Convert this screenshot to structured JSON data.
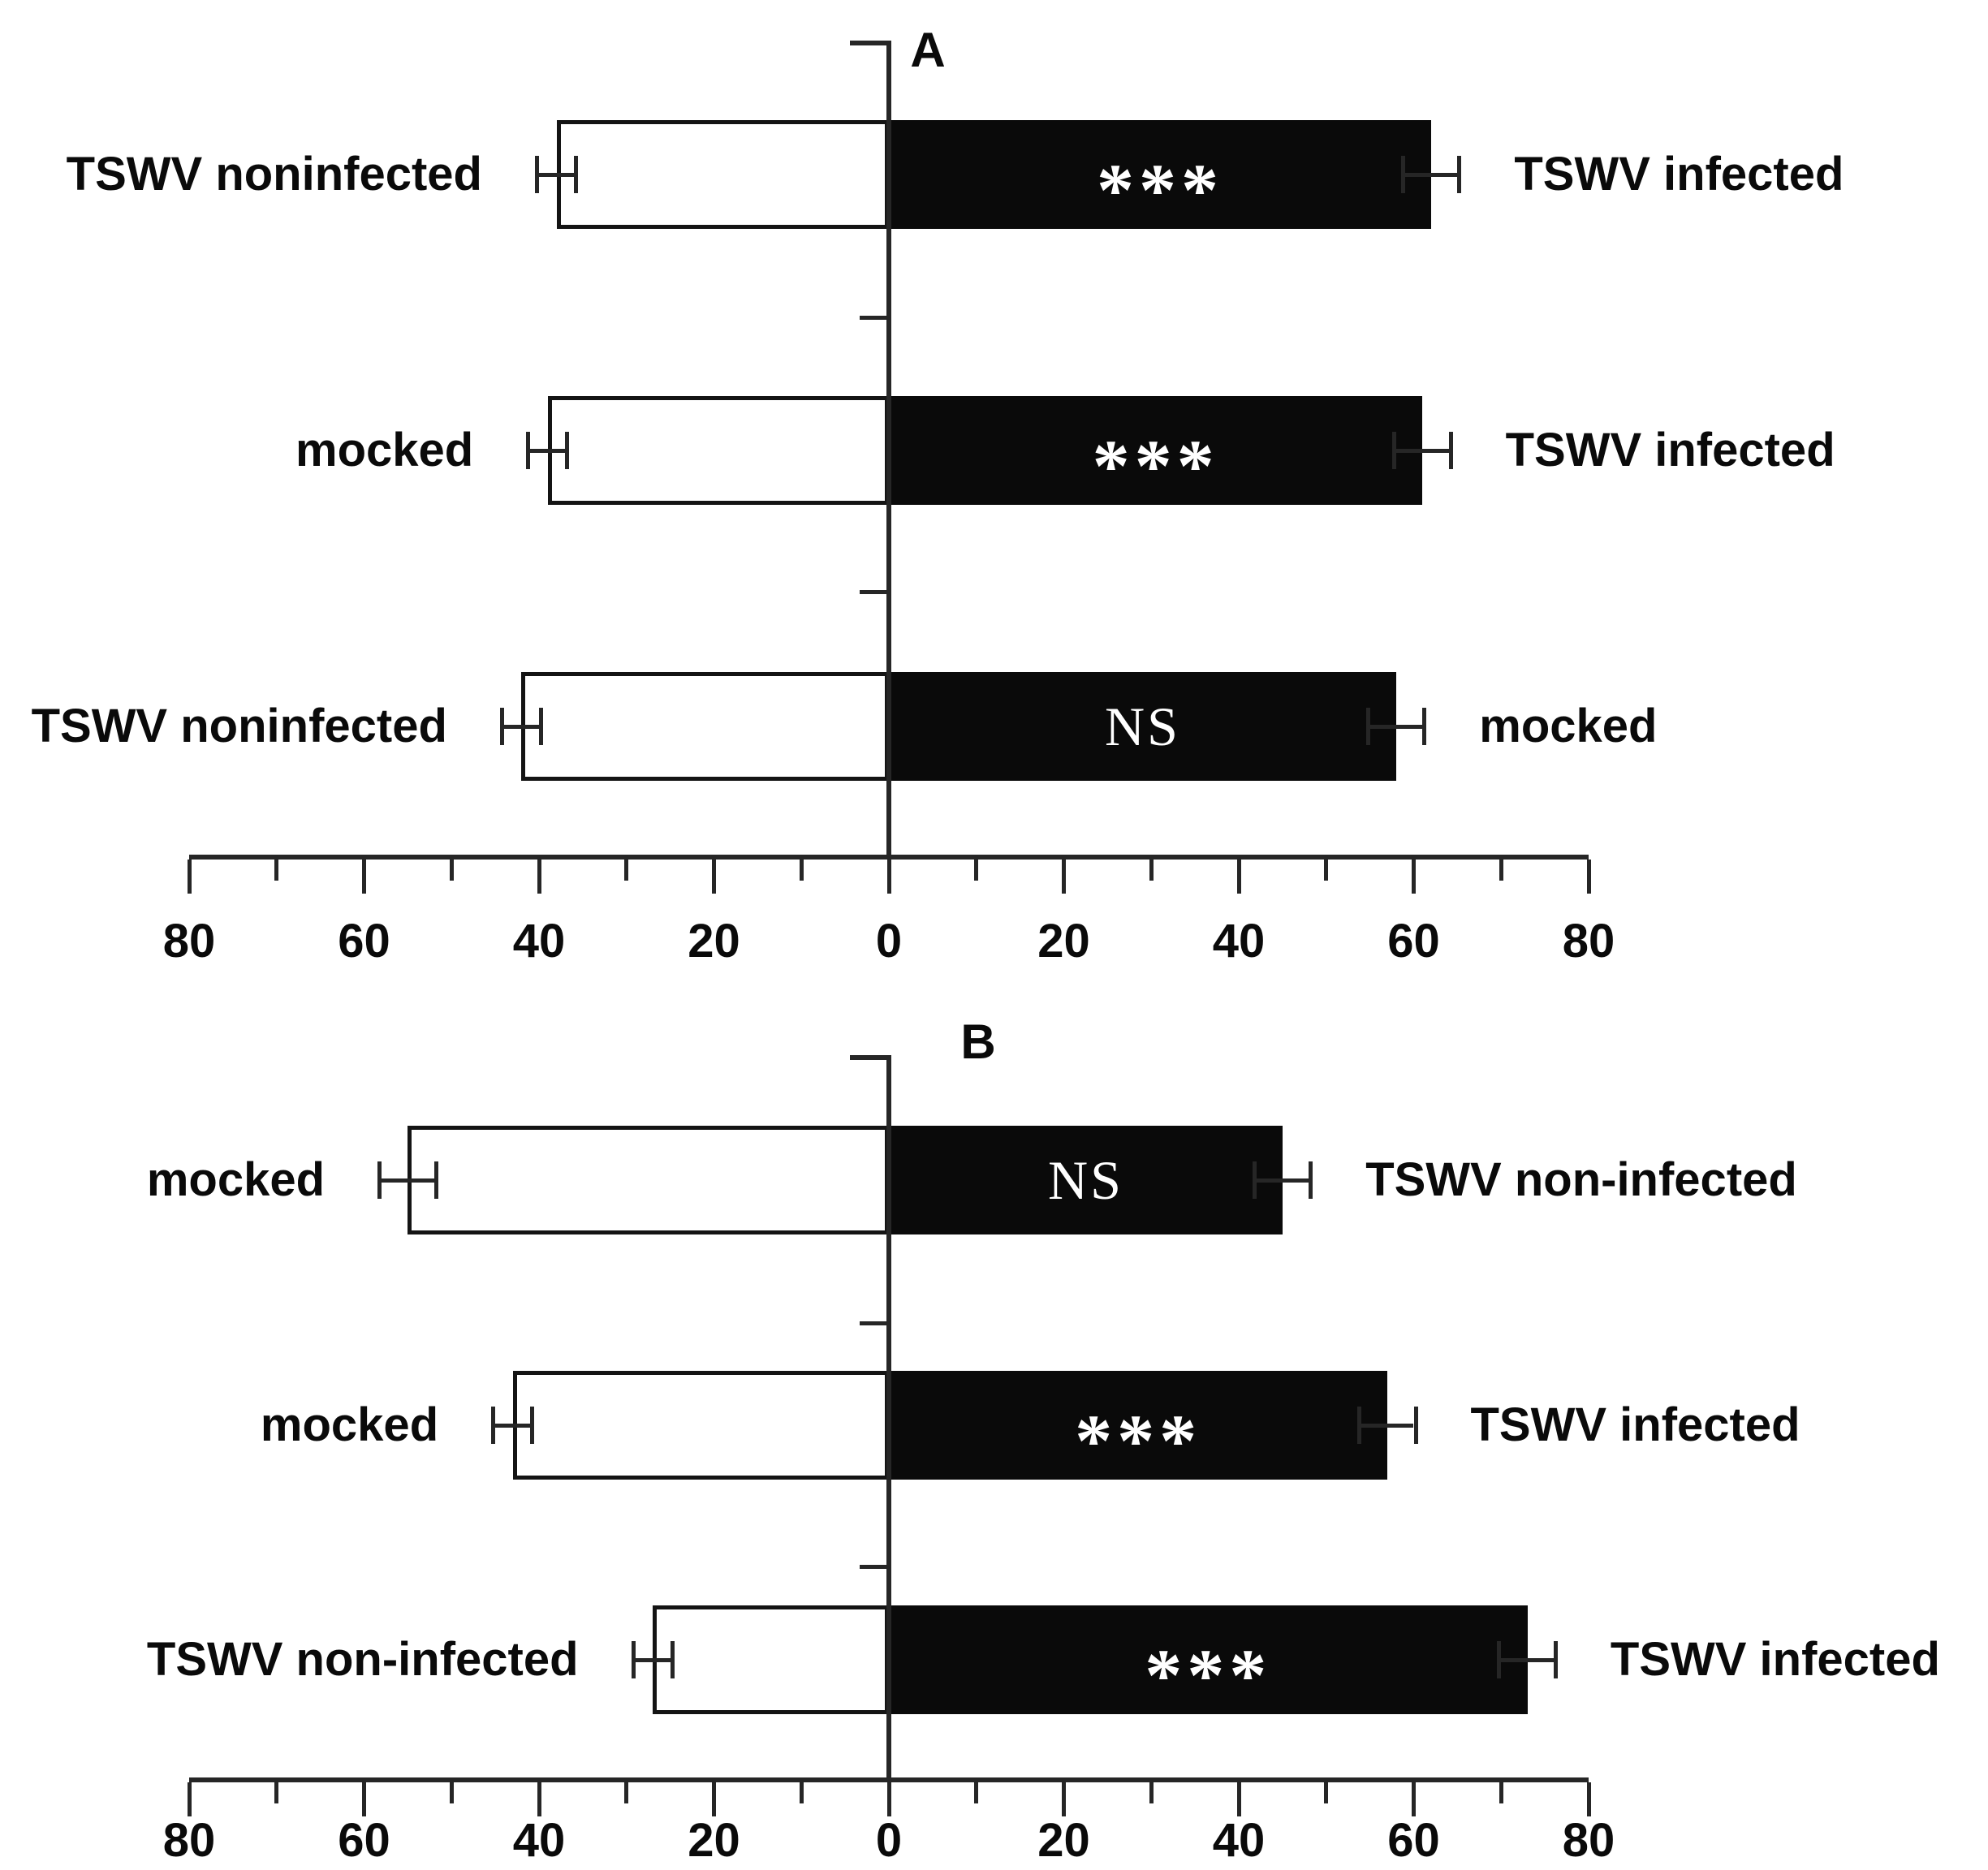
{
  "colors": {
    "background": "#ffffff",
    "left_bar_fill": "#ffffff",
    "right_bar_fill": "#0a0a0a",
    "bar_border": "#141414",
    "axis": "#262626",
    "significance_text": "#ffffff",
    "label_text": "#0a0a0a"
  },
  "chart_data": [
    {
      "type": "bar",
      "subtype": "horizontal-diverging",
      "panel": "A",
      "axis_range": [
        -80,
        80
      ],
      "axis_ticks": [
        80,
        60,
        40,
        20,
        0,
        20,
        40,
        60,
        80
      ],
      "minor_tick_step": 10,
      "grid": false,
      "legend": "none",
      "rows": [
        {
          "left": {
            "label": "TSWV noninfected",
            "value": 38,
            "error": 2,
            "fill": "white"
          },
          "right": {
            "label": "TSWV infected",
            "value": 62,
            "error": 3,
            "fill": "black"
          },
          "significance": "***"
        },
        {
          "left": {
            "label": "mocked",
            "value": 39,
            "error": 2,
            "fill": "white"
          },
          "right": {
            "label": "TSWV infected",
            "value": 61,
            "error": 3,
            "fill": "black"
          },
          "significance": "***"
        },
        {
          "left": {
            "label": "TSWV noninfected",
            "value": 42,
            "error": 2,
            "fill": "white"
          },
          "right": {
            "label": "mocked",
            "value": 58,
            "error": 3,
            "fill": "black"
          },
          "significance": "NS"
        }
      ]
    },
    {
      "type": "bar",
      "subtype": "horizontal-diverging",
      "panel": "B",
      "axis_range": [
        -80,
        80
      ],
      "axis_ticks": [
        80,
        60,
        40,
        20,
        0,
        20,
        40,
        60,
        80
      ],
      "minor_tick_step": 10,
      "grid": false,
      "legend": "none",
      "rows": [
        {
          "left": {
            "label": "mocked",
            "value": 55,
            "error": 3,
            "fill": "white"
          },
          "right": {
            "label": "TSWV non-infected",
            "value": 45,
            "error": 3,
            "fill": "black"
          },
          "significance": "NS"
        },
        {
          "left": {
            "label": "mocked",
            "value": 43,
            "error": 2,
            "fill": "white"
          },
          "right": {
            "label": "TSWV infected",
            "value": 57,
            "error": 3,
            "fill": "black"
          },
          "significance": "***"
        },
        {
          "left": {
            "label": "TSWV non-infected",
            "value": 27,
            "error": 2,
            "fill": "white"
          },
          "right": {
            "label": "TSWV infected",
            "value": 73,
            "error": 3,
            "fill": "black"
          },
          "significance": "***"
        }
      ]
    }
  ]
}
